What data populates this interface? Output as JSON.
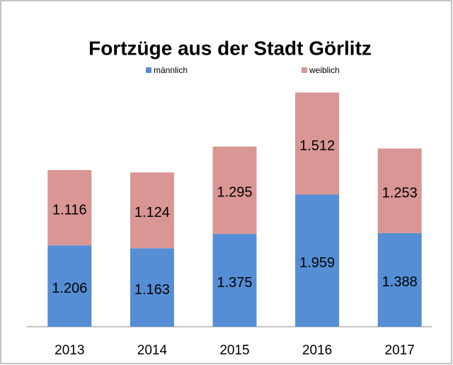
{
  "chart_data": {
    "type": "bar",
    "stacked": true,
    "title": "Fortzüge aus der Stadt Görlitz",
    "categories": [
      "2013",
      "2014",
      "2015",
      "2016",
      "2017"
    ],
    "series": [
      {
        "name": "männlich",
        "color": "#558ed5",
        "values": [
          1206,
          1163,
          1375,
          1959,
          1388
        ],
        "value_labels": [
          "1.206",
          "1.163",
          "1.375",
          "1.959",
          "1.388"
        ]
      },
      {
        "name": "weiblich",
        "color": "#d99694",
        "values": [
          1116,
          1124,
          1295,
          1512,
          1253
        ],
        "value_labels": [
          "1.116",
          "1.124",
          "1.295",
          "1.512",
          "1.253"
        ]
      }
    ]
  }
}
